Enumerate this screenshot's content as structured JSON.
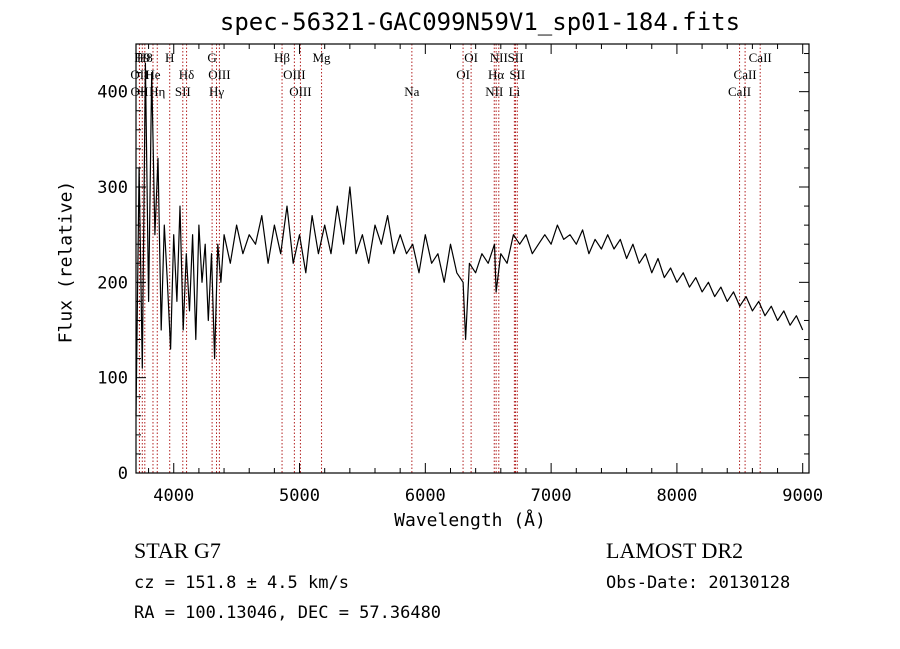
{
  "chart_data": {
    "type": "line",
    "title": "spec-56321-GAC099N59V1_sp01-184.fits",
    "xlabel": "Wavelength (Å)",
    "ylabel": "Flux (relative)",
    "xlim": [
      3700,
      9050
    ],
    "ylim": [
      0,
      450
    ],
    "xticks": [
      4000,
      5000,
      6000,
      7000,
      8000,
      9000
    ],
    "yticks": [
      0,
      100,
      200,
      300,
      400
    ],
    "grid": false,
    "line_color": "#000000",
    "marker_color": "#b22222",
    "series": [
      {
        "x": [
          3700,
          3725,
          3750,
          3775,
          3800,
          3825,
          3850,
          3875,
          3900,
          3925,
          3950,
          3975,
          4000,
          4025,
          4050,
          4075,
          4100,
          4125,
          4150,
          4175,
          4200,
          4225,
          4250,
          4275,
          4300,
          4325,
          4350,
          4375,
          4400,
          4450,
          4500,
          4550,
          4600,
          4650,
          4700,
          4750,
          4800,
          4850,
          4900,
          4950,
          5000,
          5050,
          5100,
          5150,
          5200,
          5250,
          5300,
          5350,
          5400,
          5450,
          5500,
          5550,
          5600,
          5650,
          5700,
          5750,
          5800,
          5850,
          5900,
          5950,
          6000,
          6050,
          6100,
          6150,
          6200,
          6250,
          6300,
          6320,
          6350,
          6400,
          6450,
          6500,
          6550,
          6563,
          6600,
          6650,
          6700,
          6750,
          6800,
          6850,
          6900,
          6950,
          7000,
          7050,
          7100,
          7150,
          7200,
          7250,
          7300,
          7350,
          7400,
          7450,
          7500,
          7550,
          7600,
          7650,
          7700,
          7750,
          7800,
          7850,
          7900,
          7950,
          8000,
          8050,
          8100,
          8150,
          8200,
          8250,
          8300,
          8350,
          8400,
          8450,
          8500,
          8550,
          8600,
          8650,
          8700,
          8750,
          8800,
          8850,
          8900,
          8950,
          9000
        ],
        "values": [
          60,
          320,
          110,
          430,
          180,
          420,
          250,
          330,
          150,
          260,
          200,
          130,
          250,
          180,
          280,
          150,
          230,
          170,
          250,
          140,
          260,
          200,
          240,
          160,
          230,
          120,
          240,
          200,
          250,
          220,
          260,
          230,
          250,
          240,
          270,
          220,
          260,
          230,
          280,
          220,
          250,
          210,
          270,
          230,
          260,
          230,
          280,
          240,
          300,
          230,
          250,
          220,
          260,
          240,
          270,
          230,
          250,
          230,
          240,
          210,
          250,
          220,
          230,
          200,
          240,
          210,
          200,
          140,
          220,
          210,
          230,
          220,
          240,
          190,
          230,
          220,
          250,
          240,
          250,
          230,
          240,
          250,
          240,
          260,
          245,
          250,
          240,
          255,
          230,
          245,
          235,
          250,
          235,
          245,
          225,
          240,
          220,
          230,
          210,
          225,
          205,
          215,
          200,
          210,
          195,
          205,
          190,
          200,
          185,
          195,
          180,
          190,
          175,
          185,
          170,
          180,
          165,
          175,
          160,
          170,
          155,
          165,
          150
        ]
      }
    ],
    "line_markers": [
      {
        "x": 3750,
        "label": "H9",
        "row": 0
      },
      {
        "x": 3770,
        "label": "H8",
        "row": 0
      },
      {
        "x": 3727,
        "label": "OII",
        "row": 1
      },
      {
        "x": 3835,
        "label": "He",
        "row": 1
      },
      {
        "x": 3728,
        "label": "OII",
        "row": 2
      },
      {
        "x": 3869,
        "label": "Hη",
        "row": 2
      },
      {
        "x": 3968,
        "label": "H",
        "row": 0
      },
      {
        "x": 4102,
        "label": "Hδ",
        "row": 1
      },
      {
        "x": 4072,
        "label": "SII",
        "row": 2
      },
      {
        "x": 4305,
        "label": "G",
        "row": 0
      },
      {
        "x": 4363,
        "label": "OIII",
        "row": 1
      },
      {
        "x": 4340,
        "label": "Hγ",
        "row": 2
      },
      {
        "x": 4861,
        "label": "Hβ",
        "row": 0
      },
      {
        "x": 4959,
        "label": "OIII",
        "row": 1
      },
      {
        "x": 5007,
        "label": "OIII",
        "row": 2
      },
      {
        "x": 5175,
        "label": "Mg",
        "row": 0
      },
      {
        "x": 5893,
        "label": "Na",
        "row": 2
      },
      {
        "x": 6364,
        "label": "OI",
        "row": 0
      },
      {
        "x": 6300,
        "label": "OI",
        "row": 1
      },
      {
        "x": 6584,
        "label": "NII",
        "row": 0
      },
      {
        "x": 6717,
        "label": "SII",
        "row": 0
      },
      {
        "x": 6563,
        "label": "Hα",
        "row": 1
      },
      {
        "x": 6731,
        "label": "SII",
        "row": 1
      },
      {
        "x": 6548,
        "label": "NII",
        "row": 2
      },
      {
        "x": 6708,
        "label": "Li",
        "row": 2
      },
      {
        "x": 8662,
        "label": "CaII",
        "row": 0
      },
      {
        "x": 8542,
        "label": "CaII",
        "row": 1
      },
      {
        "x": 8498,
        "label": "CaII",
        "row": 2
      }
    ]
  },
  "info": {
    "object_class": "STAR    G7",
    "survey": "LAMOST DR2",
    "cz": "cz = 151.8 ± 4.5 km/s",
    "obs_date": "Obs-Date: 20130128",
    "radec": "RA = 100.13046, DEC =  57.36480"
  }
}
